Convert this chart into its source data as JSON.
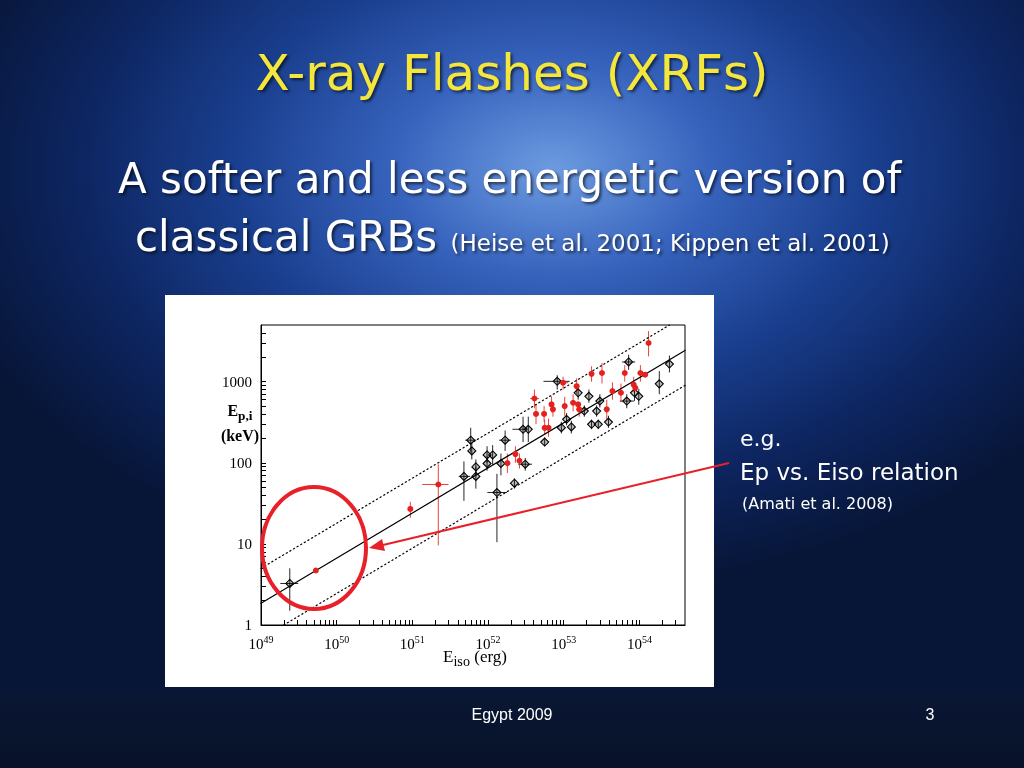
{
  "chart_data": {
    "type": "scatter",
    "title": "X-ray Flashes (XRFs)",
    "subtitle": "A softer and less energetic version of classical GRBs (Heise et al. 2001; Kippen et al. 2001)",
    "xlabel": "E$_{iso}$ (erg)",
    "ylabel": "E$_{p,i}$ (keV)",
    "annotations": [
      "e.g.",
      "Ep vs. Eiso relation",
      "(Amati et al. 2008)",
      "Egypt 2009",
      "3"
    ],
    "log": "xy",
    "xlim": [
      1e+49,
      4e+54
    ],
    "ylim": [
      1,
      5000
    ],
    "xticks": [
      {
        "value": 1e+49,
        "label": "10$^{49}$"
      },
      {
        "value": 2e+49,
        "label": null
      },
      {
        "value": 3e+49,
        "label": null
      },
      {
        "value": 4e+49,
        "label": null
      },
      {
        "value": 5e+49,
        "label": null
      },
      {
        "value": 6e+49,
        "label": null
      },
      {
        "value": 7e+49,
        "label": null
      },
      {
        "value": 8e+49,
        "label": null
      },
      {
        "value": 9e+49,
        "label": null
      },
      {
        "value": 1e+50,
        "label": "10$^{50}$"
      },
      {
        "value": 2e+50,
        "label": null
      },
      {
        "value": 3e+50,
        "label": null
      },
      {
        "value": 4e+50,
        "label": null
      },
      {
        "value": 5e+50,
        "label": null
      },
      {
        "value": 6e+50,
        "label": null
      },
      {
        "value": 7e+50,
        "label": null
      },
      {
        "value": 8e+50,
        "label": null
      },
      {
        "value": 9e+50,
        "label": null
      },
      {
        "value": 1e+51,
        "label": "10$^{51}$"
      },
      {
        "value": 2e+51,
        "label": null
      },
      {
        "value": 3e+51,
        "label": null
      },
      {
        "value": 4e+51,
        "label": null
      },
      {
        "value": 5e+51,
        "label": null
      },
      {
        "value": 6e+51,
        "label": null
      },
      {
        "value": 7e+51,
        "label": null
      },
      {
        "value": 8e+51,
        "label": null
      },
      {
        "value": 9e+51,
        "label": null
      },
      {
        "value": 1e+52,
        "label": "10$^{52}$"
      },
      {
        "value": 2e+52,
        "label": null
      },
      {
        "value": 3e+52,
        "label": null
      },
      {
        "value": 4e+52,
        "label": null
      },
      {
        "value": 5e+52,
        "label": null
      },
      {
        "value": 6e+52,
        "label": null
      },
      {
        "value": 7e+52,
        "label": null
      },
      {
        "value": 8e+52,
        "label": null
      },
      {
        "value": 9e+52,
        "label": null
      },
      {
        "value": 1e+53,
        "label": "10$^{53}$"
      },
      {
        "value": 2e+53,
        "label": null
      },
      {
        "value": 3e+53,
        "label": null
      },
      {
        "value": 4e+53,
        "label": null
      },
      {
        "value": 5e+53,
        "label": null
      },
      {
        "value": 6e+53,
        "label": null
      },
      {
        "value": 7e+53,
        "label": null
      },
      {
        "value": 8e+53,
        "label": null
      },
      {
        "value": 9e+53,
        "label": null
      },
      {
        "value": 1e+54,
        "label": "10$^{54}$"
      },
      {
        "value": 2e+54,
        "label": null
      },
      {
        "value": 3e+54,
        "label": null
      }
    ],
    "yticks": [
      1,
      {
        "value": 2,
        "label": null
      },
      {
        "value": 3,
        "label": null
      },
      {
        "value": 4,
        "label": null
      },
      {
        "value": 5,
        "label": null
      },
      {
        "value": 6,
        "label": null
      },
      {
        "value": 7,
        "label": null
      },
      {
        "value": 8,
        "label": null
      },
      {
        "value": 9,
        "label": null
      },
      10,
      {
        "value": 20,
        "label": null
      },
      {
        "value": 30,
        "label": null
      },
      {
        "value": 40,
        "label": null
      },
      {
        "value": 50,
        "label": null
      },
      {
        "value": 60,
        "label": null
      },
      {
        "value": 70,
        "label": null
      },
      {
        "value": 80,
        "label": null
      },
      {
        "value": 90,
        "label": null
      },
      100,
      {
        "value": 200,
        "label": null
      },
      {
        "value": 300,
        "label": null
      },
      {
        "value": 400,
        "label": null
      },
      {
        "value": 500,
        "label": null
      },
      {
        "value": 600,
        "label": null
      },
      {
        "value": 700,
        "label": null
      },
      {
        "value": 800,
        "label": null
      },
      {
        "value": 900,
        "label": null
      },
      1000,
      {
        "value": 2000,
        "label": null
      },
      {
        "value": 3000,
        "label": null
      },
      {
        "value": 4000,
        "label": null
      }
    ],
    "series": [
      {
        "type": "line",
        "color": "#000000",
        "marker": "none",
        "line_style": "solid",
        "x": [
          1e+49,
          4e+54
        ],
        "values": [
          1.85,
          2430
        ]
      },
      {
        "type": "line",
        "color": "#000000",
        "marker": "none",
        "line_style": "dotted",
        "x": [
          1e+49,
          2.5e+54
        ],
        "values": [
          5.0,
          5000
        ]
      },
      {
        "type": "line",
        "color": "#000000",
        "marker": "none",
        "line_style": "dotted",
        "x": [
          2e+49,
          4e+54
        ],
        "values": [
          1,
          900
        ]
      },
      {
        "color": "#000000",
        "marker": "diamond",
        "x": [
          2.4e+49,
          4.8e+51,
          6.9e+51,
          6.9e+51,
          5.9e+51,
          6.1e+51,
          1.31e+52,
          9.7e+51,
          1.15e+52,
          9.7e+51,
          1.48e+52,
          1.68e+52,
          3.1e+52,
          2.23e+52,
          2.9e+52,
          3.4e+52,
          5.6e+52,
          8.2e+52,
          1.55e+53,
          9.3e+52,
          1.26e+53,
          1.09e+53,
          2.15e+53,
          1.87e+53,
          2.72e+53,
          3e+53,
          2.33e+53,
          2.86e+53,
          3.9e+53,
          6.8e+53,
          7.2e+53,
          8.6e+53,
          9.8e+53,
          1.83e+54,
          2.49e+54
        ],
        "values": [
          3.25,
          68,
          68,
          89,
          190,
          140,
          43,
          125,
          125,
          98,
          98,
          190,
          96,
          56,
          259,
          259,
          180,
          1010,
          730,
          271,
          277,
          344,
          660,
          434,
          434,
          577,
          298,
          298,
          318,
          577,
          1750,
          730,
          660,
          940,
          1650
        ],
        "errors": [
          [
            1.5,
            5.0
          ],
          [
            34,
            104
          ],
          [
            48,
            90
          ],
          [
            70,
            110
          ],
          [
            134,
            270
          ],
          [
            110,
            175
          ],
          [
            10.5,
            73
          ],
          [
            100,
            160
          ],
          [
            95,
            165
          ],
          [
            80,
            120
          ],
          [
            70,
            130
          ],
          [
            140,
            250
          ],
          [
            80,
            115
          ],
          [
            48,
            64
          ],
          [
            180,
            370
          ],
          [
            180,
            370
          ],
          [
            160,
            205
          ],
          [
            800,
            1200
          ],
          [
            600,
            880
          ],
          [
            230,
            320
          ],
          [
            230,
            330
          ],
          [
            290,
            410
          ],
          [
            550,
            800
          ],
          [
            370,
            510
          ],
          [
            370,
            510
          ],
          [
            480,
            700
          ],
          [
            260,
            340
          ],
          [
            260,
            340
          ],
          [
            270,
            380
          ],
          [
            470,
            700
          ],
          [
            1400,
            2150
          ],
          [
            580,
            900
          ],
          [
            520,
            820
          ],
          [
            700,
            1350
          ],
          [
            1300,
            2100
          ]
        ],
        "xerrors": [
          [
            1.8e+49,
            3.1e+49
          ],
          [
            4.1e+51,
            5.8e+51
          ],
          null,
          null,
          [
            5e+51,
            7e+51
          ],
          null,
          [
            9.8e+51,
            1.78e+52
          ],
          null,
          null,
          null,
          null,
          [
            1.4e+52,
            2e+52
          ],
          [
            2.5e+52,
            3.8e+52
          ],
          null,
          [
            2.1e+52,
            3.2e+52
          ],
          null,
          null,
          [
            5.4e+52,
            1.2e+53
          ],
          null,
          null,
          null,
          null,
          null,
          null,
          null,
          null,
          null,
          null,
          null,
          [
            5.5e+53,
            8.5e+53
          ],
          [
            5.9e+53,
            8.8e+53
          ],
          null,
          null,
          null,
          null
        ]
      },
      {
        "color": "#e4211c",
        "marker": "circle",
        "x": [
          5.3e+49,
          9.4e+50,
          2.2e+51,
          1.8e+52,
          2.3e+52,
          2.6e+52,
          4.1e+52,
          4.3e+52,
          5.5e+52,
          5.6e+52,
          6.3e+52,
          6.9e+52,
          7.2e+52,
          9.8e+52,
          1.48e+53,
          1.03e+53,
          1.33e+53,
          1.55e+53,
          1.6e+53,
          3.7e+53,
          2.33e+53,
          3.2e+53,
          4.4e+53,
          5.7e+53,
          6.4e+53,
          8.4e+53,
          8.8e+53,
          1.03e+54,
          1.19e+54,
          1.32e+54
        ],
        "values": [
          4.7,
          27,
          54,
          99,
          128,
          106,
          620,
          400,
          400,
          270,
          270,
          525,
          456,
          970,
          880,
          500,
          550,
          525,
          456,
          456,
          1250,
          1280,
          765,
          730,
          1280,
          920,
          840,
          1280,
          1220,
          3000
        ],
        "errors": [
          null,
          [
            21,
            33
          ],
          [
            9.6,
            96
          ],
          [
            75,
            130
          ],
          [
            100,
            160
          ],
          [
            85,
            130
          ],
          [
            470,
            800
          ],
          [
            300,
            520
          ],
          [
            320,
            500
          ],
          [
            220,
            340
          ],
          [
            210,
            350
          ],
          [
            420,
            660
          ],
          [
            370,
            560
          ],
          [
            800,
            1150
          ],
          [
            700,
            1100
          ],
          [
            380,
            650
          ],
          [
            430,
            700
          ],
          null,
          [
            370,
            560
          ],
          [
            340,
            600
          ],
          [
            1000,
            1550
          ],
          [
            950,
            1700
          ],
          [
            600,
            980
          ],
          [
            560,
            950
          ],
          [
            1000,
            1600
          ],
          [
            750,
            1150
          ],
          null,
          [
            1000,
            1600
          ],
          null,
          [
            2050,
            4200
          ]
        ],
        "xerrors": [
          null,
          null,
          [
            1.35e+51,
            3e+51
          ],
          null,
          null,
          null,
          [
            3.6e+52,
            4.7e+52
          ],
          null,
          null,
          null,
          null,
          null,
          null,
          [
            8.5e+52,
            1.15e+53
          ],
          null,
          null,
          null,
          null,
          null,
          null,
          null,
          null,
          null,
          null,
          null,
          null,
          null,
          null,
          null,
          null
        ]
      }
    ]
  }
}
